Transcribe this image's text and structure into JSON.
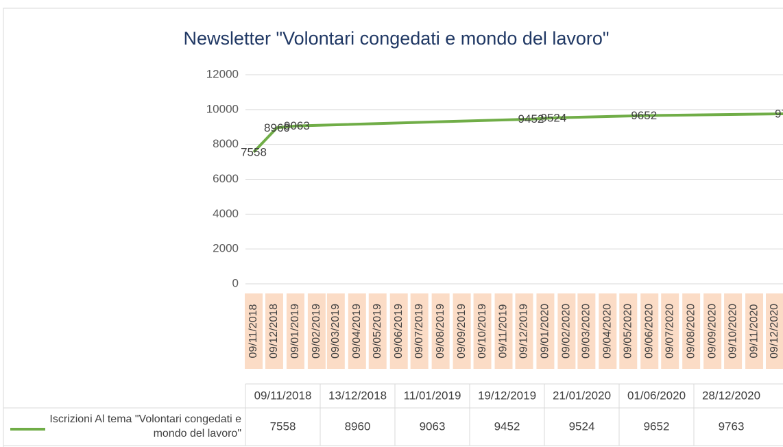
{
  "chart_data": {
    "type": "line",
    "title": "Newsletter \"Volontari congedati e mondo del lavoro\"",
    "x": [
      "09/11/2018",
      "13/12/2018",
      "11/01/2019",
      "19/12/2019",
      "21/01/2020",
      "01/06/2020",
      "28/12/2020"
    ],
    "series": [
      {
        "name": "Iscrizioni Al tema \"Volontari congedati e mondo del lavoro\"",
        "color": "#70ad47",
        "values": [
          7558,
          8960,
          9063,
          9452,
          9524,
          9652,
          9763
        ]
      }
    ],
    "ylim": [
      0,
      12000
    ],
    "yticks": [
      0,
      2000,
      4000,
      6000,
      8000,
      10000,
      12000
    ],
    "xticks": [
      "09/11/2018",
      "09/12/2018",
      "09/01/2019",
      "09/02/2019",
      "09/03/2019",
      "09/04/2019",
      "09/05/2019",
      "09/06/2019",
      "09/07/2019",
      "09/08/2019",
      "09/09/2019",
      "09/10/2019",
      "09/11/2019",
      "09/12/2019",
      "09/01/2020",
      "09/02/2020",
      "09/03/2020",
      "09/04/2020",
      "09/05/2020",
      "09/06/2020",
      "09/07/2020",
      "09/08/2020",
      "09/09/2020",
      "09/10/2020",
      "09/11/2020",
      "09/12/2020"
    ],
    "grid": true,
    "data_table": true
  }
}
